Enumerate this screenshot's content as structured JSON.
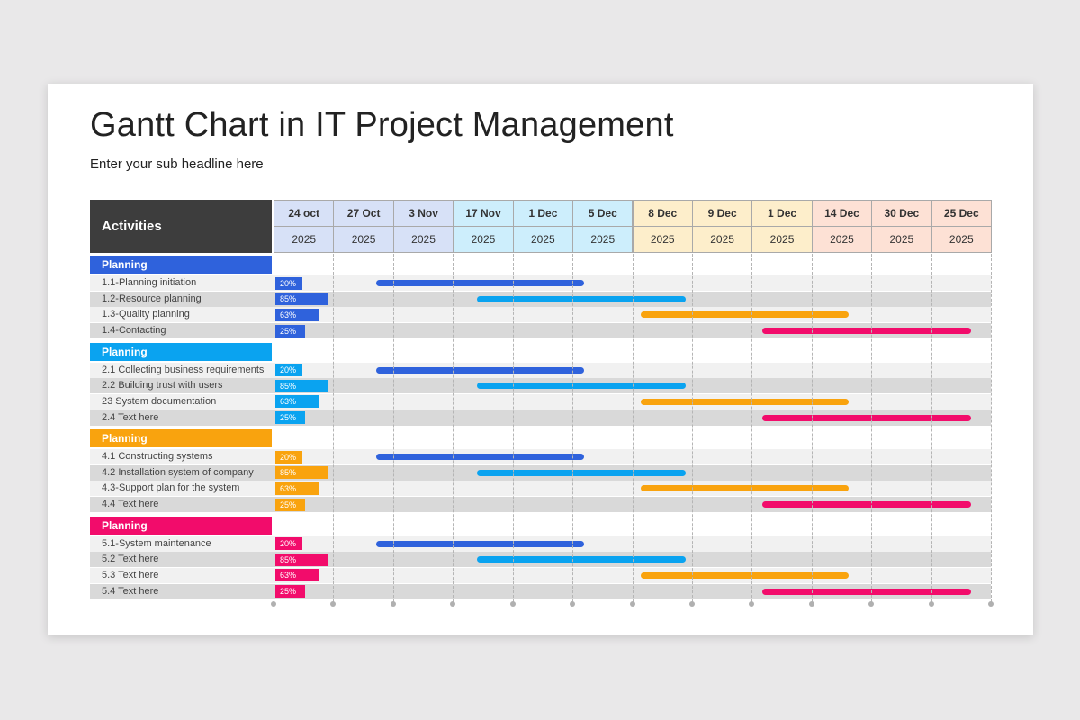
{
  "title": "Gantt Chart in IT Project Management",
  "subtitle": "Enter your sub headline here",
  "chart_data": {
    "type": "gantt",
    "title": "Gantt Chart in IT Project Management",
    "activities_label": "Activities",
    "columns": [
      {
        "date": "24 oct",
        "year": "2025"
      },
      {
        "date": "27 Oct",
        "year": "2025"
      },
      {
        "date": "3 Nov",
        "year": "2025"
      },
      {
        "date": "17 Nov",
        "year": "2025"
      },
      {
        "date": "1 Dec",
        "year": "2025"
      },
      {
        "date": "5 Dec",
        "year": "2025"
      },
      {
        "date": "8 Dec",
        "year": "2025"
      },
      {
        "date": "9 Dec",
        "year": "2025"
      },
      {
        "date": "1 Dec",
        "year": "2025"
      },
      {
        "date": "14 Dec",
        "year": "2025"
      },
      {
        "date": "30 Dec",
        "year": "2025"
      },
      {
        "date": "25 Dec",
        "year": "2025"
      }
    ],
    "column_group_colors": [
      "#d7e1f7",
      "#d7e1f7",
      "#d7e1f7",
      "#cdeefc",
      "#cdeefc",
      "#cdeefc",
      "#fdeecb",
      "#fdeecb",
      "#fdeecb",
      "#fde1d5",
      "#fde1d5",
      "#fde1d5"
    ],
    "bar_colors": [
      "#2f62dc",
      "#0aa3f0",
      "#f9a30e",
      "#f20c6b"
    ],
    "groups": [
      {
        "name": "Planning",
        "color": "#2f62dc",
        "tasks": [
          {
            "label": "1.1-Planning initiation",
            "progress": 20,
            "start_col": 1.72,
            "end_col": 5.2
          },
          {
            "label": "1.2-Resource planning",
            "progress": 85,
            "start_col": 3.4,
            "end_col": 6.9
          },
          {
            "label": "1.3-Quality planning",
            "progress": 63,
            "start_col": 6.15,
            "end_col": 9.62
          },
          {
            "label": "1.4-Contacting",
            "progress": 25,
            "start_col": 8.18,
            "end_col": 11.67
          }
        ]
      },
      {
        "name": "Planning",
        "color": "#0aa3f0",
        "tasks": [
          {
            "label": "2.1 Collecting business requirements",
            "progress": 20,
            "start_col": 1.72,
            "end_col": 5.2
          },
          {
            "label": "2.2 Building trust with users",
            "progress": 85,
            "start_col": 3.4,
            "end_col": 6.9
          },
          {
            "label": "23 System documentation",
            "progress": 63,
            "start_col": 6.15,
            "end_col": 9.62
          },
          {
            "label": "2.4 Text here",
            "progress": 25,
            "start_col": 8.18,
            "end_col": 11.67
          }
        ]
      },
      {
        "name": "Planning",
        "color": "#f9a30e",
        "tasks": [
          {
            "label": "4.1 Constructing systems",
            "progress": 20,
            "start_col": 1.72,
            "end_col": 5.2
          },
          {
            "label": "4.2 Installation system of company",
            "progress": 85,
            "start_col": 3.4,
            "end_col": 6.9
          },
          {
            "label": "4.3-Support plan for the system",
            "progress": 63,
            "start_col": 6.15,
            "end_col": 9.62
          },
          {
            "label": "4.4 Text here",
            "progress": 25,
            "start_col": 8.18,
            "end_col": 11.67
          }
        ]
      },
      {
        "name": "Planning",
        "color": "#f20c6b",
        "tasks": [
          {
            "label": "5.1-System maintenance",
            "progress": 20,
            "start_col": 1.72,
            "end_col": 5.2
          },
          {
            "label": "5.2 Text here",
            "progress": 85,
            "start_col": 3.4,
            "end_col": 6.9
          },
          {
            "label": "5.3 Text here",
            "progress": 63,
            "start_col": 6.15,
            "end_col": 9.62
          },
          {
            "label": "5.4 Text here",
            "progress": 25,
            "start_col": 8.18,
            "end_col": 11.67
          }
        ]
      }
    ]
  }
}
